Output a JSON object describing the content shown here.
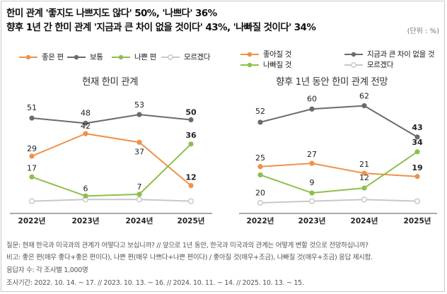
{
  "headline": {
    "line1": "한미 관계 '좋지도 나쁘지도 않다' 50%, '나쁘다' 36%",
    "line2": "향후 1년 간 한미 관계 '지금과 큰 차이 없을 것이다' 43%, '나빠질 것이다' 34%"
  },
  "unit": "(단위 : %)",
  "notes": [
    "질문: 현재 한국과 미국과의 관계가 어떻다고 보십니까? // 앞으로 1년 동안, 한국과 미국과의 관계는 어떻게 변할 것으로 전망하십니까?",
    "비고: 좋은 편(매우 좋다+좋은 편이다), 나쁜 편(매우 나쁘다+나쁜 편이다) / 좋아질 것(매우+조금), 나빠질 것(매우+조금) 응답 제시함.",
    "응답자 수: 각 조사별 1,000명",
    "조사기간: 2022. 10. 14. ~ 17. // 2023. 10. 13. ~ 16. // 2024. 10. 11. ~ 14. // 2025. 10. 13. ~ 15."
  ],
  "colors": {
    "orange": "#f0914a",
    "gray": "#6b6b6b",
    "green": "#8cc04a",
    "light": "#c8c8c8"
  },
  "chart_data": [
    {
      "type": "line",
      "title": "현재 한미 관계",
      "x": [
        "2022년",
        "2023년",
        "2024년",
        "2025년"
      ],
      "ylim": [
        0,
        60
      ],
      "grid": false,
      "legend_position": "top",
      "series": [
        {
          "name": "좋은 편",
          "color": "#f0914a",
          "values": [
            29,
            42,
            37,
            12
          ]
        },
        {
          "name": "보통",
          "color": "#6b6b6b",
          "values": [
            51,
            48,
            53,
            50
          ]
        },
        {
          "name": "나쁜 편",
          "color": "#8cc04a",
          "values": [
            17,
            6,
            7,
            36
          ]
        },
        {
          "name": "모르겠다",
          "color": "#c8c8c8",
          "values": [
            3,
            4,
            4,
            3
          ],
          "labels_hidden": true
        }
      ]
    },
    {
      "type": "line",
      "title": "향후 1년 동안 한미 관계 전망",
      "x": [
        "2022년",
        "2023년",
        "2024년",
        "2025년"
      ],
      "ylim": [
        0,
        70
      ],
      "grid": false,
      "legend_position": "top",
      "series": [
        {
          "name": "좋아질 것",
          "color": "#f0914a",
          "values": [
            25,
            27,
            21,
            19
          ]
        },
        {
          "name": "지금과 큰 차이 없을 것",
          "color": "#6b6b6b",
          "values": [
            52,
            60,
            62,
            43
          ]
        },
        {
          "name": "나빠질 것",
          "color": "#8cc04a",
          "values": [
            20,
            9,
            12,
            34
          ]
        },
        {
          "name": "모르겠다",
          "color": "#c8c8c8",
          "values": [
            3,
            4,
            5,
            4
          ],
          "labels_hidden": true
        }
      ]
    }
  ]
}
